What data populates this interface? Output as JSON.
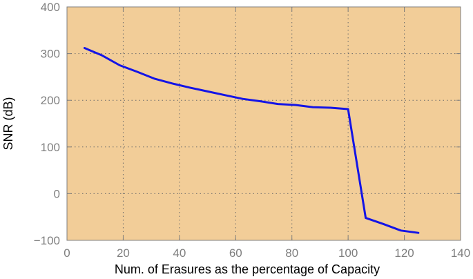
{
  "chart_data": {
    "type": "line",
    "title": "",
    "xlabel": "Num. of Erasures as the percentage of Capacity",
    "ylabel": "SNR (dB)",
    "xlim": [
      0,
      140
    ],
    "ylim": [
      -100,
      400
    ],
    "xticks": [
      0,
      20,
      40,
      60,
      80,
      100,
      120,
      140
    ],
    "yticks": [
      -100,
      0,
      100,
      200,
      300,
      400
    ],
    "xtick_labels": [
      "0",
      "20",
      "40",
      "60",
      "80",
      "100",
      "120",
      "140"
    ],
    "ytick_labels": [
      "−100",
      "0",
      "100",
      "200",
      "300",
      "400"
    ],
    "grid": true,
    "series": [
      {
        "x": [
          6.25,
          12.5,
          18.75,
          25,
          31.25,
          37.5,
          43.75,
          50,
          56.25,
          62.5,
          68.75,
          75,
          81.25,
          87.5,
          93.75,
          100,
          106.25,
          112.5,
          118.75,
          125
        ],
        "y": [
          312,
          296,
          275,
          261,
          246,
          236,
          227,
          219,
          211,
          203,
          198,
          192,
          190,
          185,
          184,
          181,
          -52,
          -65,
          -79,
          -84
        ]
      }
    ],
    "colors": {
      "plot_background": "#f2cd98",
      "line": "#1414e6",
      "grid": "#6b6b6b",
      "axes": "#7f7f7f"
    }
  }
}
